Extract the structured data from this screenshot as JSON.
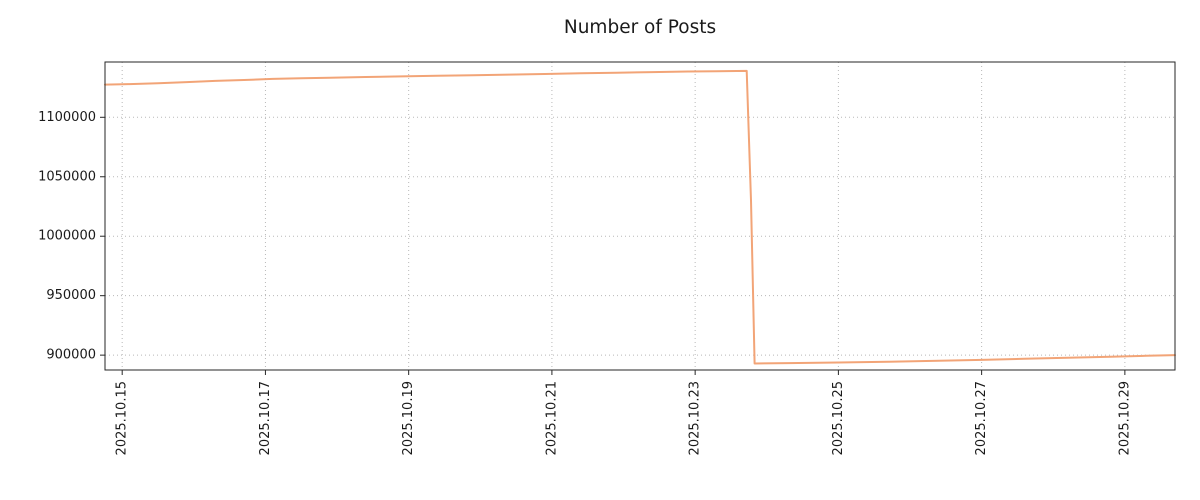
{
  "chart_data": {
    "type": "line",
    "title": "Number of Posts",
    "xlabel": "",
    "ylabel": "",
    "x_unit": "date, decimal day of 2025.10",
    "xlim": [
      14.76,
      29.7
    ],
    "ylim": [
      887500,
      1146500
    ],
    "grid": "dotted",
    "legend": "none",
    "x_ticks": [
      {
        "value": 15,
        "label": "2025.10.15"
      },
      {
        "value": 17,
        "label": "2025.10.17"
      },
      {
        "value": 19,
        "label": "2025.10.19"
      },
      {
        "value": 21,
        "label": "2025.10.21"
      },
      {
        "value": 23,
        "label": "2025.10.23"
      },
      {
        "value": 25,
        "label": "2025.10.25"
      },
      {
        "value": 27,
        "label": "2025.10.27"
      },
      {
        "value": 29,
        "label": "2025.10.29"
      }
    ],
    "y_ticks": [
      {
        "value": 900000,
        "label": "900000"
      },
      {
        "value": 950000,
        "label": "950000"
      },
      {
        "value": 1000000,
        "label": "1000000"
      },
      {
        "value": 1050000,
        "label": "1050000"
      },
      {
        "value": 1100000,
        "label": "1100000"
      }
    ],
    "colors": {
      "line": "#f2a477",
      "grid": "#b8b8b8",
      "axis": "#262626",
      "text": "#1a1a1a"
    },
    "series": [
      {
        "name": "number-of-posts",
        "color": "#f2a477",
        "line_width": 2,
        "points": [
          [
            14.76,
            1127500
          ],
          [
            15.1,
            1127900
          ],
          [
            15.5,
            1128600
          ],
          [
            15.9,
            1129600
          ],
          [
            16.3,
            1130600
          ],
          [
            16.7,
            1131400
          ],
          [
            17.1,
            1132300
          ],
          [
            17.5,
            1132900
          ],
          [
            17.9,
            1133300
          ],
          [
            18.4,
            1133900
          ],
          [
            18.9,
            1134400
          ],
          [
            19.4,
            1134900
          ],
          [
            19.9,
            1135400
          ],
          [
            20.4,
            1135900
          ],
          [
            20.9,
            1136400
          ],
          [
            21.4,
            1137000
          ],
          [
            21.9,
            1137500
          ],
          [
            22.4,
            1138000
          ],
          [
            22.9,
            1138500
          ],
          [
            23.3,
            1138800
          ],
          [
            23.72,
            1139000
          ],
          [
            23.78,
            1030000
          ],
          [
            23.83,
            893000
          ],
          [
            24.3,
            893300
          ],
          [
            25.0,
            893800
          ],
          [
            25.7,
            894400
          ],
          [
            26.4,
            895200
          ],
          [
            27.0,
            896000
          ],
          [
            27.6,
            896900
          ],
          [
            28.2,
            897800
          ],
          [
            28.8,
            898700
          ],
          [
            29.3,
            899400
          ],
          [
            29.7,
            900000
          ]
        ]
      }
    ]
  }
}
